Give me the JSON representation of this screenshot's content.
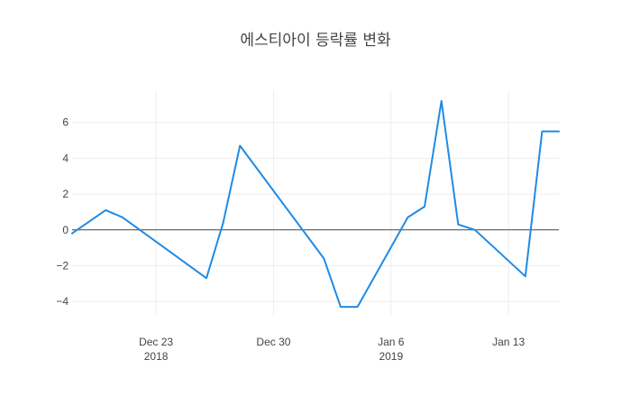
{
  "chart_data": {
    "type": "line",
    "title": "에스티아이 등락률 변화",
    "xlabel": "",
    "ylabel": "",
    "x": [
      "2018-12-18",
      "2018-12-20",
      "2018-12-21",
      "2018-12-26",
      "2018-12-27",
      "2018-12-28",
      "2019-01-02",
      "2019-01-03",
      "2019-01-04",
      "2019-01-07",
      "2019-01-08",
      "2019-01-09",
      "2019-01-10",
      "2019-01-11",
      "2019-01-14",
      "2019-01-15",
      "2019-01-16"
    ],
    "series": [
      {
        "name": "",
        "color": "#1f8be6",
        "values": [
          -0.2,
          1.1,
          0.7,
          -2.7,
          0.4,
          4.7,
          -1.6,
          -4.3,
          -4.3,
          0.7,
          1.3,
          7.2,
          0.3,
          0.0,
          -2.6,
          5.5,
          5.5
        ]
      }
    ],
    "x_range": [
      "2018-12-18",
      "2019-01-16"
    ],
    "ylim": [
      -4.8,
      7.8
    ],
    "x_ticks": [
      {
        "date": "2018-12-23",
        "label": "Dec 23",
        "sub": "2018"
      },
      {
        "date": "2018-12-30",
        "label": "Dec 30",
        "sub": ""
      },
      {
        "date": "2019-01-06",
        "label": "Jan 6",
        "sub": "2019"
      },
      {
        "date": "2019-01-13",
        "label": "Jan 13",
        "sub": ""
      }
    ],
    "y_ticks": [
      {
        "value": -4,
        "label": "−4"
      },
      {
        "value": -2,
        "label": "−2"
      },
      {
        "value": 0,
        "label": "0"
      },
      {
        "value": 2,
        "label": "2"
      },
      {
        "value": 4,
        "label": "4"
      },
      {
        "value": 6,
        "label": "6"
      }
    ],
    "grid": true,
    "zero_line": true,
    "grid_color": "#eeeeee",
    "zero_line_color": "#444444"
  }
}
